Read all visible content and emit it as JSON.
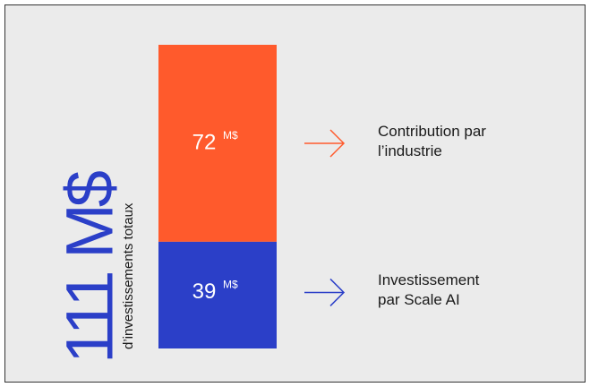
{
  "chart_data": {
    "type": "stacked-bar",
    "total_label": "111 M$",
    "total_caption": "d’investissements totaux",
    "unit": "M$",
    "series": [
      {
        "name": "Contribution par l’industrie",
        "color": "#ff5a2c",
        "values": [
          72
        ]
      },
      {
        "name": "Investissement par Scale AI",
        "color": "#2b3fc8",
        "values": [
          39
        ]
      }
    ]
  }
}
